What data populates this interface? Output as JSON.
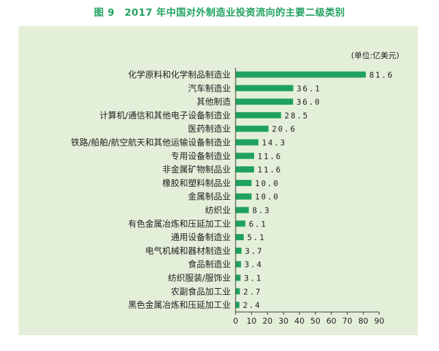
{
  "title": "图 9　2017 年中国对外制造业投资流向的主要二级类别",
  "chart_data": {
    "type": "bar",
    "orientation": "horizontal",
    "unit_label": "(单位:亿美元)",
    "bar_color": "#1fa25e",
    "xlim": [
      0,
      90
    ],
    "ticks": [
      0,
      10,
      20,
      30,
      40,
      50,
      60,
      70,
      80,
      90
    ],
    "categories": [
      "化学原料和化学制品制造业",
      "汽车制造业",
      "其他制造",
      "计算机/通信和其他电子设备制造业",
      "医药制造业",
      "铁路/船舶/航空航天和其他运输设备制造业",
      "专用设备制造业",
      "非金属矿物制品业",
      "橡胶和塑料制品业",
      "金属制品业",
      "纺织业",
      "有色金属冶炼和压延加工业",
      "通用设备制造业",
      "电气机械和器材制造业",
      "食品制造业",
      "纺织服装/服饰业",
      "农副食品加工业",
      "黑色金属冶炼和压延加工业"
    ],
    "values": [
      81.6,
      36.1,
      36.0,
      28.5,
      20.6,
      14.3,
      11.6,
      11.6,
      10.0,
      10.0,
      8.3,
      6.1,
      5.1,
      3.7,
      3.4,
      3.1,
      2.7,
      2.4
    ],
    "value_labels": [
      "81.6",
      "36.1",
      "36.0",
      "28.5",
      "20.6",
      "14.3",
      "11.6",
      "11.6",
      "10.0",
      "10.0",
      "8.3",
      "6.1",
      "5.1",
      "3.7",
      "3.4",
      "3.1",
      "2.7",
      "2.4"
    ]
  }
}
